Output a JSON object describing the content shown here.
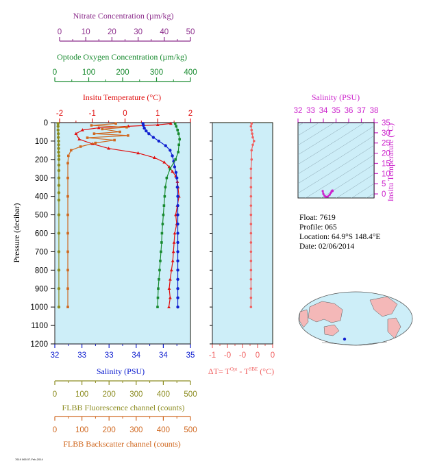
{
  "colors": {
    "nitrate": "#8b2c8b",
    "oxygen": "#178a2e",
    "temperature": "#e01010",
    "salinity": "#1020d0",
    "fluorescence": "#8c8c20",
    "backscatter": "#d06820",
    "delta_t": "#f06060",
    "ts_axis": "#cc22cc",
    "panel_bg": "#cdeef8",
    "land": "#f4b8b8",
    "ocean": "#cdeef8"
  },
  "info": {
    "float": "Float:  7619",
    "profile": "Profile:  065",
    "location": "Location:  64.9°S  148.4°E",
    "date": "Date:  02/06/2014"
  },
  "footer_text": "7619 065 07-Feb-2014",
  "chart_data": [
    {
      "type": "line",
      "panel": "main-profile",
      "ylabel": "Pressure (decibar)",
      "ylim": [
        1200,
        0
      ],
      "yticks": [
        "0",
        "100",
        "200",
        "300",
        "400",
        "500",
        "600",
        "700",
        "800",
        "900",
        "1000",
        "1100",
        "1200"
      ],
      "axes": {
        "nitrate": {
          "title": "Nitrate Concentration (µm/kg)",
          "range": [
            0,
            50
          ],
          "ticks": [
            "0",
            "10",
            "20",
            "30",
            "40",
            "50"
          ]
        },
        "oxygen": {
          "title": "Optode Oxygen Concentration (µm/kg)",
          "range": [
            0,
            400
          ],
          "ticks": [
            "0",
            "100",
            "200",
            "300",
            "400"
          ]
        },
        "temperature": {
          "title": "Insitu Temperature (°C)",
          "range": [
            -2,
            2
          ],
          "ticks": [
            "-2",
            "-1",
            "0",
            "1",
            "2"
          ]
        },
        "salinity": {
          "title": "Salinity (PSU)",
          "range": [
            32,
            35
          ],
          "ticks": [
            "32",
            "33",
            "33",
            "34",
            "34",
            "35"
          ]
        },
        "fluorescence": {
          "title": "FLBB Fluorescence channel (counts)",
          "range": [
            0,
            500
          ],
          "ticks": [
            "0",
            "100",
            "200",
            "300",
            "400",
            "500"
          ]
        },
        "backscatter": {
          "title": "FLBB Backscatter channel (counts)",
          "range": [
            0,
            500
          ],
          "ticks": [
            "0",
            "100",
            "200",
            "300",
            "400",
            "500"
          ]
        }
      },
      "series": [
        {
          "key": "temperature",
          "points": [
            [
              1.4,
              5
            ],
            [
              1.0,
              12
            ],
            [
              0.1,
              20
            ],
            [
              -0.8,
              28
            ],
            [
              -1.3,
              40
            ],
            [
              -1.5,
              60
            ],
            [
              -1.4,
              90
            ],
            [
              -1.0,
              115
            ],
            [
              -0.5,
              140
            ],
            [
              0.4,
              165
            ],
            [
              0.9,
              190
            ],
            [
              1.2,
              215
            ],
            [
              1.35,
              240
            ],
            [
              1.45,
              265
            ],
            [
              1.55,
              290
            ],
            [
              1.6,
              320
            ],
            [
              1.62,
              350
            ],
            [
              1.65,
              400
            ],
            [
              1.6,
              450
            ],
            [
              1.55,
              500
            ],
            [
              1.58,
              550
            ],
            [
              1.52,
              600
            ],
            [
              1.5,
              650
            ],
            [
              1.48,
              700
            ],
            [
              1.46,
              750
            ],
            [
              1.42,
              800
            ],
            [
              1.38,
              850
            ],
            [
              1.35,
              900
            ],
            [
              1.38,
              950
            ],
            [
              1.34,
              1000
            ]
          ]
        },
        {
          "key": "salinity",
          "points": [
            [
              33.95,
              5
            ],
            [
              33.96,
              15
            ],
            [
              33.98,
              30
            ],
            [
              34.02,
              45
            ],
            [
              34.08,
              60
            ],
            [
              34.18,
              80
            ],
            [
              34.3,
              100
            ],
            [
              34.45,
              125
            ],
            [
              34.55,
              150
            ],
            [
              34.6,
              180
            ],
            [
              34.63,
              210
            ],
            [
              34.65,
              240
            ],
            [
              34.68,
              270
            ],
            [
              34.7,
              300
            ],
            [
              34.71,
              350
            ],
            [
              34.72,
              400
            ],
            [
              34.72,
              450
            ],
            [
              34.72,
              500
            ],
            [
              34.72,
              550
            ],
            [
              34.72,
              600
            ],
            [
              34.72,
              650
            ],
            [
              34.72,
              700
            ],
            [
              34.72,
              750
            ],
            [
              34.72,
              800
            ],
            [
              34.72,
              850
            ],
            [
              34.72,
              900
            ],
            [
              34.72,
              950
            ],
            [
              34.72,
              1000
            ]
          ]
        },
        {
          "key": "oxygen",
          "points": [
            [
              355,
              5
            ],
            [
              358,
              20
            ],
            [
              362,
              40
            ],
            [
              365,
              60
            ],
            [
              368,
              90
            ],
            [
              366,
              120
            ],
            [
              364,
              160
            ],
            [
              356,
              200
            ],
            [
              340,
              250
            ],
            [
              330,
              300
            ],
            [
              326,
              350
            ],
            [
              324,
              400
            ],
            [
              322,
              450
            ],
            [
              320,
              500
            ],
            [
              318,
              550
            ],
            [
              316,
              600
            ],
            [
              315,
              650
            ],
            [
              313,
              700
            ],
            [
              311,
              750
            ],
            [
              309,
              800
            ],
            [
              307,
              850
            ],
            [
              305,
              900
            ],
            [
              304,
              950
            ],
            [
              303,
              1000
            ]
          ]
        },
        {
          "key": "fluorescence",
          "points": [
            [
              12,
              5
            ],
            [
              12,
              20
            ],
            [
              12,
              40
            ],
            [
              13,
              60
            ],
            [
              13,
              80
            ],
            [
              14,
              100
            ],
            [
              14,
              120
            ],
            [
              14,
              140
            ],
            [
              14,
              160
            ],
            [
              15,
              180
            ],
            [
              15,
              200
            ],
            [
              15,
              230
            ],
            [
              15,
              260
            ],
            [
              15,
              300
            ],
            [
              15,
              340
            ],
            [
              15,
              380
            ],
            [
              15,
              420
            ],
            [
              15,
              500
            ],
            [
              15,
              600
            ],
            [
              15,
              700
            ],
            [
              15,
              800
            ],
            [
              15,
              900
            ],
            [
              15,
              1000
            ]
          ]
        },
        {
          "key": "backscatter",
          "points": [
            [
              225,
              5
            ],
            [
              135,
              15
            ],
            [
              265,
              25
            ],
            [
              175,
              35
            ],
            [
              240,
              50
            ],
            [
              145,
              60
            ],
            [
              270,
              70
            ],
            [
              120,
              82
            ],
            [
              220,
              95
            ],
            [
              150,
              110
            ],
            [
              95,
              130
            ],
            [
              60,
              150
            ],
            [
              50,
              180
            ],
            [
              48,
              220
            ],
            [
              48,
              300
            ],
            [
              48,
              400
            ],
            [
              48,
              500
            ],
            [
              48,
              600
            ],
            [
              48,
              700
            ],
            [
              48,
              800
            ],
            [
              48,
              900
            ],
            [
              48,
              1000
            ]
          ]
        }
      ]
    },
    {
      "type": "line",
      "panel": "delta-t",
      "xlabel": "ΔT= TOpt - TSBE (°C)",
      "xlim": [
        -1,
        0
      ],
      "xticks": [
        "-1",
        "-0",
        "-0",
        "0",
        "0"
      ],
      "ylim": [
        1200,
        0
      ],
      "series": [
        {
          "key": "delta_t",
          "points": [
            [
              -0.02,
              5
            ],
            [
              -0.03,
              20
            ],
            [
              -0.02,
              40
            ],
            [
              -0.01,
              60
            ],
            [
              0.0,
              80
            ],
            [
              0.02,
              100
            ],
            [
              0.0,
              120
            ],
            [
              -0.02,
              150
            ],
            [
              -0.02,
              200
            ],
            [
              -0.03,
              250
            ],
            [
              -0.03,
              300
            ],
            [
              -0.03,
              350
            ],
            [
              -0.03,
              400
            ],
            [
              -0.03,
              450
            ],
            [
              -0.03,
              500
            ],
            [
              -0.03,
              550
            ],
            [
              -0.03,
              600
            ],
            [
              -0.03,
              650
            ],
            [
              -0.03,
              700
            ],
            [
              -0.03,
              750
            ],
            [
              -0.03,
              800
            ],
            [
              -0.03,
              850
            ],
            [
              -0.03,
              900
            ],
            [
              -0.03,
              950
            ],
            [
              -0.03,
              1000
            ]
          ]
        }
      ]
    },
    {
      "type": "scatter",
      "panel": "ts-diagram",
      "xlabel": "Salinity (PSU)",
      "ylabel": "Insitu Temperature (°C)",
      "xlim": [
        32,
        38
      ],
      "ylim": [
        -2,
        35
      ],
      "xticks": [
        "32",
        "33",
        "34",
        "35",
        "36",
        "37",
        "38"
      ],
      "yticks": [
        "0",
        "5",
        "10",
        "15",
        "20",
        "25",
        "30",
        "35"
      ],
      "series": [
        {
          "key": "ts",
          "points": [
            [
              33.95,
              1.4
            ],
            [
              34.0,
              0.0
            ],
            [
              34.1,
              -1.0
            ],
            [
              34.2,
              -1.4
            ],
            [
              34.35,
              -1.3
            ],
            [
              34.5,
              -0.4
            ],
            [
              34.6,
              0.6
            ],
            [
              34.65,
              1.3
            ],
            [
              34.7,
              1.6
            ],
            [
              34.72,
              1.65
            ],
            [
              34.72,
              1.5
            ],
            [
              34.72,
              1.35
            ]
          ]
        }
      ]
    }
  ]
}
